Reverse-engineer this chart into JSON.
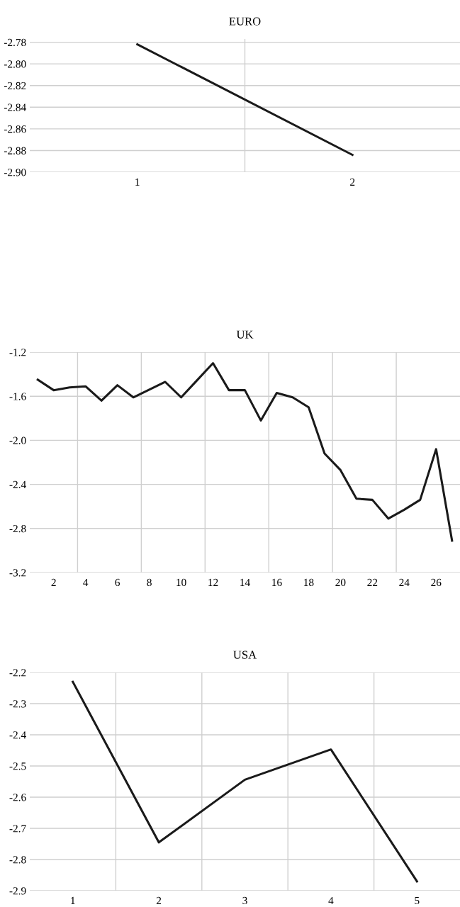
{
  "chart_data": [
    {
      "type": "line",
      "title": "EURO",
      "categories": [
        "1",
        "2"
      ],
      "grid": true,
      "series": [
        {
          "color": "#1a1a1a",
          "values": [
            -2.782,
            -2.884
          ]
        }
      ],
      "ylim": [
        -2.9,
        -2.777
      ],
      "yticks": [
        {
          "value": -2.9,
          "label": "-2.90"
        },
        {
          "value": -2.88,
          "label": "-2.88"
        },
        {
          "value": -2.86,
          "label": "-2.86"
        },
        {
          "value": -2.84,
          "label": "-2.84"
        },
        {
          "value": -2.82,
          "label": "-2.82"
        },
        {
          "value": -2.8,
          "label": "-2.80"
        },
        {
          "value": -2.78,
          "label": "-2.78"
        }
      ]
    },
    {
      "type": "line",
      "title": "UK",
      "categories": [
        null,
        "2",
        null,
        "4",
        null,
        "6",
        null,
        "8",
        null,
        "10",
        null,
        "12",
        null,
        "14",
        null,
        "16",
        null,
        "18",
        null,
        "20",
        null,
        "22",
        null,
        "24",
        null,
        "26",
        null
      ],
      "grid": true,
      "series": [
        {
          "color": "#1a1a1a",
          "values": [
            -1.45,
            -1.545,
            -1.52,
            -1.51,
            -1.64,
            -1.5,
            -1.61,
            -1.54,
            -1.47,
            -1.61,
            -1.455,
            -1.3,
            -1.545,
            -1.545,
            -1.82,
            -1.57,
            -1.61,
            -1.7,
            -2.12,
            -2.27,
            -2.53,
            -2.54,
            -2.71,
            -2.63,
            -2.54,
            -2.08,
            -2.91
          ]
        }
      ],
      "ylim": [
        -3.2,
        -1.2
      ],
      "yticks": [
        {
          "value": -3.2,
          "label": "-3.2"
        },
        {
          "value": -2.8,
          "label": "-2.8"
        },
        {
          "value": -2.4,
          "label": "-2.4"
        },
        {
          "value": -2.0,
          "label": "-2.0"
        },
        {
          "value": -1.6,
          "label": "-1.6"
        },
        {
          "value": -1.2,
          "label": "-1.2"
        }
      ]
    },
    {
      "type": "line",
      "title": "USA",
      "categories": [
        "1",
        "2",
        "3",
        "4",
        "5"
      ],
      "grid": true,
      "series": [
        {
          "color": "#1a1a1a",
          "values": [
            -2.23,
            -2.745,
            -2.544,
            -2.447,
            -2.87
          ]
        }
      ],
      "ylim": [
        -2.9,
        -2.2
      ],
      "yticks": [
        {
          "value": -2.9,
          "label": "-2.9"
        },
        {
          "value": -2.8,
          "label": "-2.8"
        },
        {
          "value": -2.7,
          "label": "-2.7"
        },
        {
          "value": -2.6,
          "label": "-2.6"
        },
        {
          "value": -2.5,
          "label": "-2.5"
        },
        {
          "value": -2.4,
          "label": "-2.4"
        },
        {
          "value": -2.3,
          "label": "-2.3"
        },
        {
          "value": -2.2,
          "label": "-2.2"
        }
      ]
    }
  ]
}
